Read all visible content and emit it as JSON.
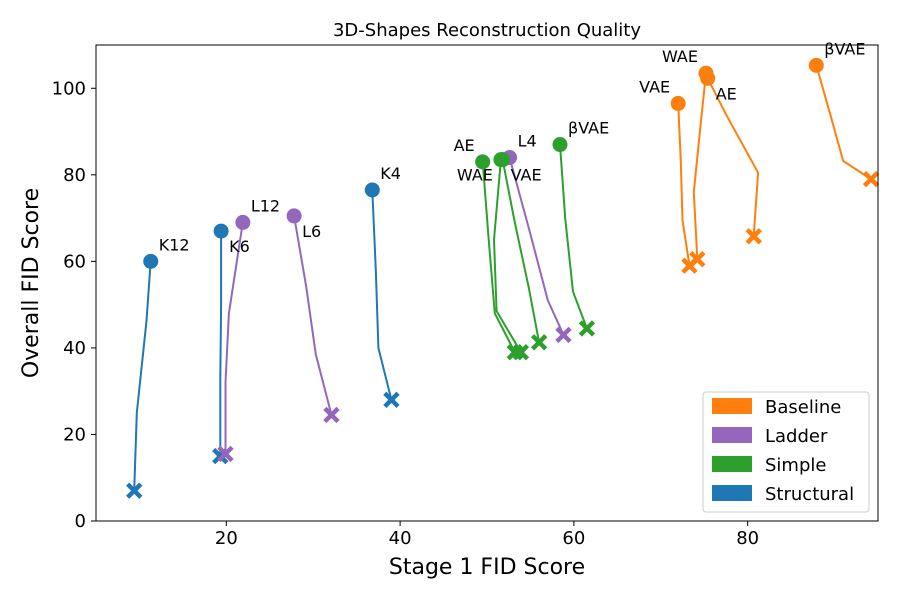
{
  "chart_data": {
    "type": "line",
    "title": "3D-Shapes Reconstruction Quality",
    "xlabel": "Stage 1 FID Score",
    "ylabel": "Overall FID Score",
    "xlim": [
      5,
      95
    ],
    "ylim": [
      0,
      110
    ],
    "xticks": [
      20,
      40,
      60,
      80
    ],
    "yticks": [
      0,
      20,
      40,
      60,
      80,
      100
    ],
    "legend_position": "lower right",
    "legend": [
      {
        "name": "Baseline",
        "color": "#ff7f0e"
      },
      {
        "name": "Ladder",
        "color": "#9467bd"
      },
      {
        "name": "Simple",
        "color": "#2ca02c"
      },
      {
        "name": "Structural",
        "color": "#1f77b4"
      }
    ],
    "series": [
      {
        "group": "Structural",
        "label": "K12",
        "label_pos": "upper-right",
        "color": "#1f77b4",
        "points": [
          [
            11.3,
            60
          ],
          [
            10.8,
            46
          ],
          [
            9.7,
            25
          ],
          [
            9.4,
            7
          ]
        ]
      },
      {
        "group": "Structural",
        "label": "K6",
        "label_pos": "lower-right",
        "color": "#1f77b4",
        "points": [
          [
            19.4,
            67
          ],
          [
            19.4,
            50
          ],
          [
            19.3,
            33
          ],
          [
            19.3,
            15
          ]
        ]
      },
      {
        "group": "Structural",
        "label": "K4",
        "label_pos": "upper-right",
        "color": "#1f77b4",
        "points": [
          [
            36.8,
            76.5
          ],
          [
            37.2,
            58
          ],
          [
            37.5,
            40
          ],
          [
            39.0,
            28
          ]
        ]
      },
      {
        "group": "Ladder",
        "label": "L12",
        "label_pos": "upper-right",
        "color": "#9467bd",
        "points": [
          [
            21.9,
            69
          ],
          [
            20.3,
            48
          ],
          [
            19.9,
            32
          ],
          [
            19.9,
            15.5
          ]
        ]
      },
      {
        "group": "Ladder",
        "label": "L6",
        "label_pos": "lower-right",
        "color": "#9467bd",
        "points": [
          [
            27.8,
            70.5
          ],
          [
            29.2,
            54
          ],
          [
            30.3,
            38.5
          ],
          [
            32.1,
            24.5
          ]
        ]
      },
      {
        "group": "Ladder",
        "label": "L4",
        "label_pos": "upper-right",
        "color": "#9467bd",
        "points": [
          [
            52.6,
            84
          ],
          [
            54.9,
            67
          ],
          [
            57.0,
            51
          ],
          [
            58.8,
            43
          ]
        ]
      },
      {
        "group": "Simple",
        "label": "AE",
        "label_pos": "upper-left",
        "color": "#2ca02c",
        "points": [
          [
            49.5,
            83
          ],
          [
            50.2,
            65
          ],
          [
            50.9,
            48
          ],
          [
            53.2,
            39
          ]
        ]
      },
      {
        "group": "Simple",
        "label": "WAE",
        "label_pos": "lower-left",
        "color": "#2ca02c",
        "points": [
          [
            51.6,
            83.5
          ],
          [
            50.8,
            65
          ],
          [
            51.1,
            48.5
          ],
          [
            53.9,
            39
          ]
        ]
      },
      {
        "group": "Simple",
        "label": "VAE",
        "label_pos": "lower-right",
        "color": "#2ca02c",
        "points": [
          [
            51.8,
            83.5
          ],
          [
            53.2,
            69
          ],
          [
            54.8,
            54
          ],
          [
            56.0,
            41.3
          ]
        ]
      },
      {
        "group": "Simple",
        "label": "βVAE",
        "label_pos": "upper-right",
        "color": "#2ca02c",
        "points": [
          [
            58.4,
            87
          ],
          [
            59.0,
            70
          ],
          [
            59.9,
            53
          ],
          [
            61.5,
            44.5
          ]
        ]
      },
      {
        "group": "Baseline",
        "label": "VAE",
        "label_pos": "upper-left",
        "color": "#ff7f0e",
        "points": [
          [
            72.0,
            96.5
          ],
          [
            72.3,
            83
          ],
          [
            72.5,
            69.5
          ],
          [
            73.3,
            59
          ]
        ]
      },
      {
        "group": "Baseline",
        "label": "WAE",
        "label_pos": "upper-left",
        "color": "#ff7f0e",
        "points": [
          [
            75.2,
            103.5
          ],
          [
            74.5,
            90
          ],
          [
            73.8,
            76
          ],
          [
            74.2,
            60.5
          ]
        ]
      },
      {
        "group": "Baseline",
        "label": "AE",
        "label_pos": "lower-right",
        "color": "#ff7f0e",
        "points": [
          [
            75.4,
            102.3
          ],
          [
            77.5,
            94
          ],
          [
            81.2,
            80.5
          ],
          [
            80.7,
            65.8
          ]
        ]
      },
      {
        "group": "Baseline",
        "label": "βVAE",
        "label_pos": "upper-right",
        "color": "#ff7f0e",
        "points": [
          [
            87.9,
            105.3
          ],
          [
            89.5,
            94
          ],
          [
            91.0,
            83.2
          ],
          [
            94.2,
            79
          ]
        ]
      }
    ]
  }
}
